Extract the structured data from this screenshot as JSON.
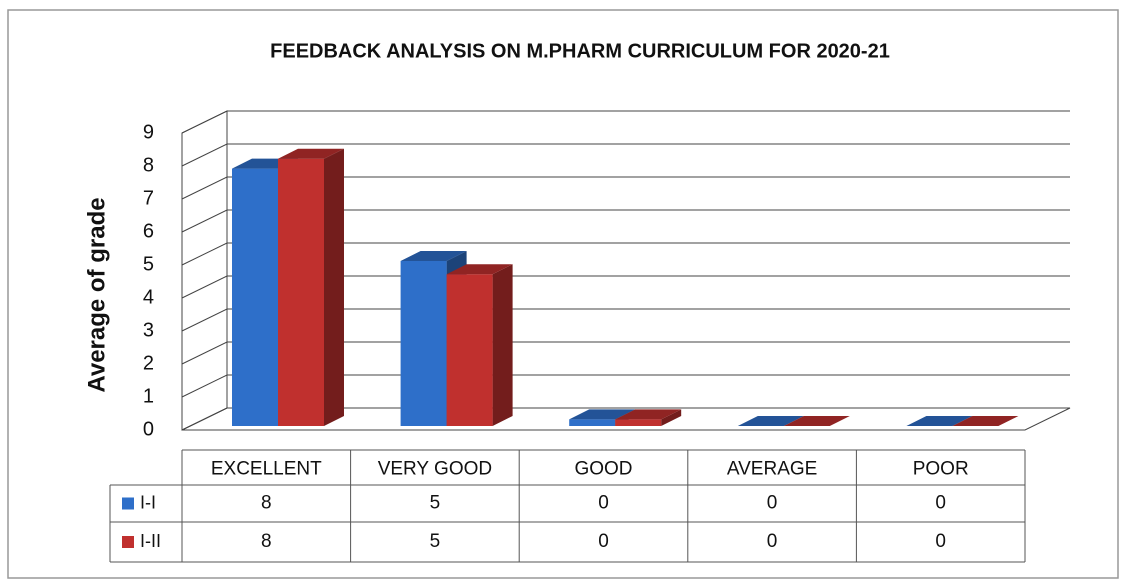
{
  "chart_data": {
    "type": "bar3d",
    "title": "FEEDBACK ANALYSIS ON M.PHARM CURRICULUM FOR 2020-21",
    "y_label": "Average of grade",
    "categories": [
      "EXCELLENT",
      "VERY GOOD",
      "GOOD",
      "AVERAGE",
      "POOR"
    ],
    "series": [
      {
        "name": "I-I",
        "color": "#2e6fc9",
        "values": [
          7.8,
          5,
          0.2,
          0,
          0
        ],
        "value_labels": [
          "8",
          "5",
          "0",
          "0",
          "0"
        ]
      },
      {
        "name": "I-II",
        "color": "#c0302e",
        "values": [
          8.1,
          4.6,
          0.2,
          0,
          0
        ],
        "value_labels": [
          "8",
          "5",
          "0",
          "0",
          "0"
        ]
      }
    ],
    "ylim": [
      0,
      9
    ],
    "yticks": [
      0,
      1,
      2,
      3,
      4,
      5,
      6,
      7,
      8,
      9
    ],
    "grid": true
  }
}
